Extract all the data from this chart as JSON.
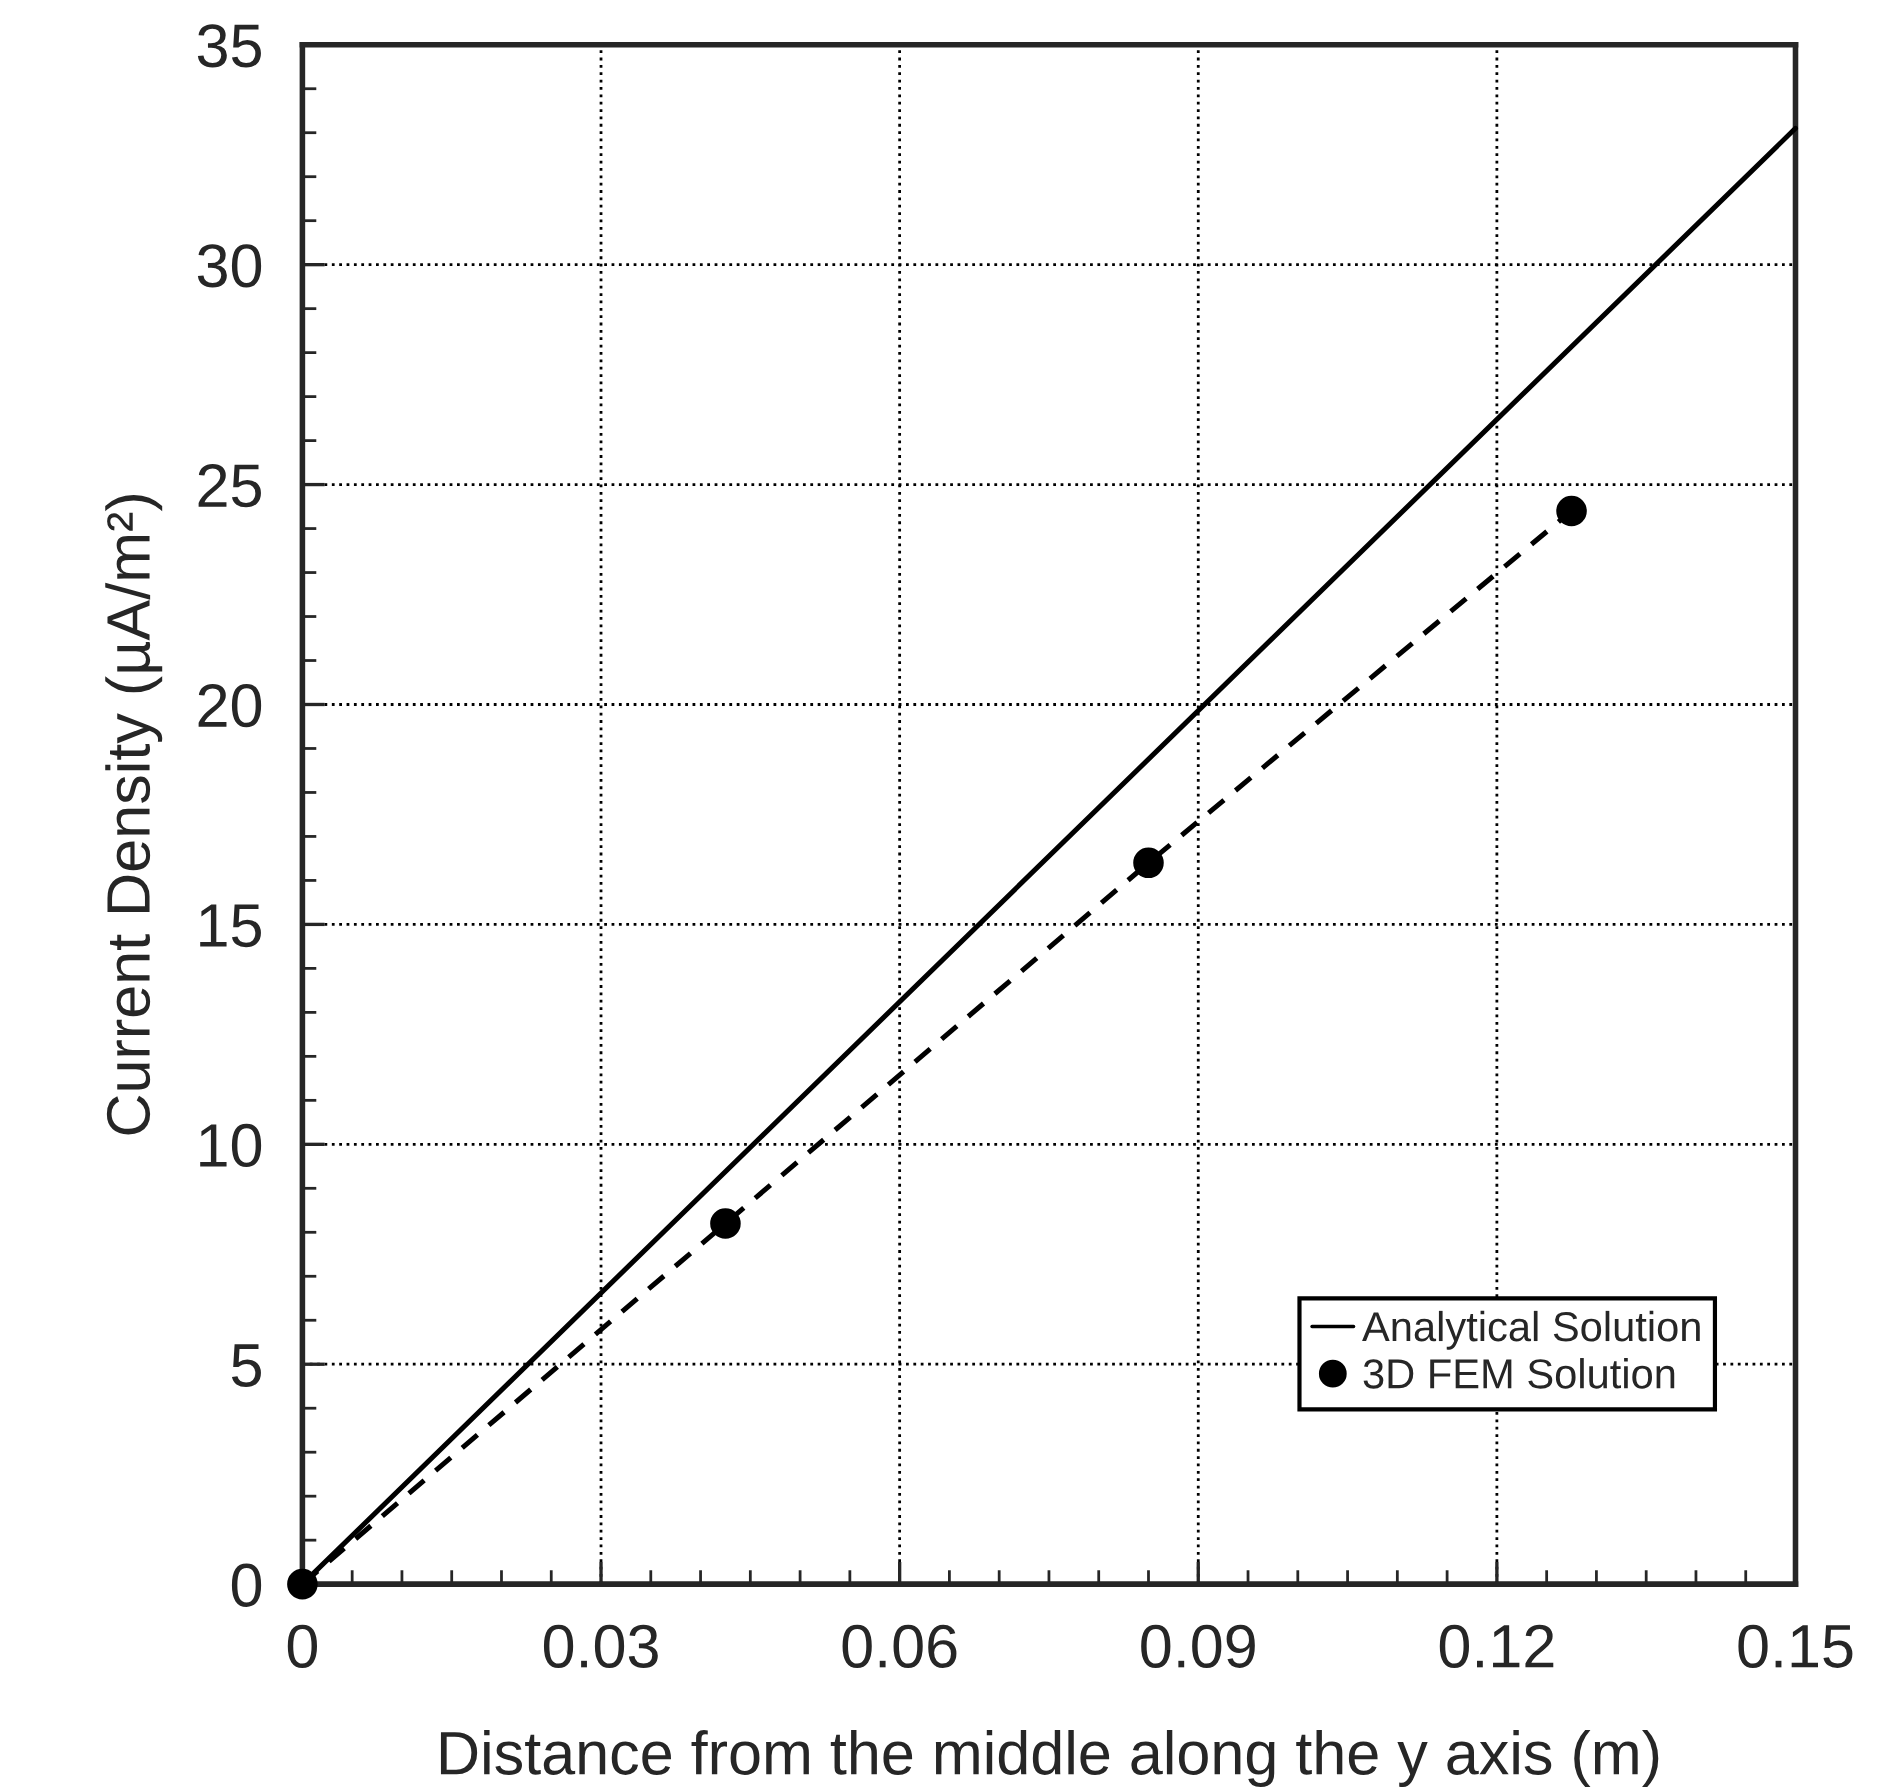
{
  "chart_data": {
    "type": "line",
    "xlabel": "Distance from the middle along the y axis (m)",
    "ylabel": "Current Density (µA/m²)",
    "series": [
      {
        "name": "Analytical Solution",
        "color": "#000000",
        "x": [
          0,
          0.15
        ],
        "values": [
          0,
          33.1
        ],
        "line_style": "solid"
      },
      {
        "name": "3D FEM Solution",
        "color": "#000000",
        "x": [
          0,
          0.0425,
          0.085,
          0.1275
        ],
        "values": [
          0,
          8.2,
          16.4,
          24.4
        ],
        "marker": "circle",
        "line_style": "dashed"
      }
    ],
    "xlim": [
      0,
      0.15
    ],
    "ylim": [
      0,
      35
    ],
    "xticks": [
      0,
      0.03,
      0.06,
      0.09,
      0.12,
      0.15
    ],
    "yticks": [
      0,
      5,
      10,
      15,
      20,
      25,
      30,
      35
    ],
    "grid": true,
    "legend": "bottom right"
  }
}
